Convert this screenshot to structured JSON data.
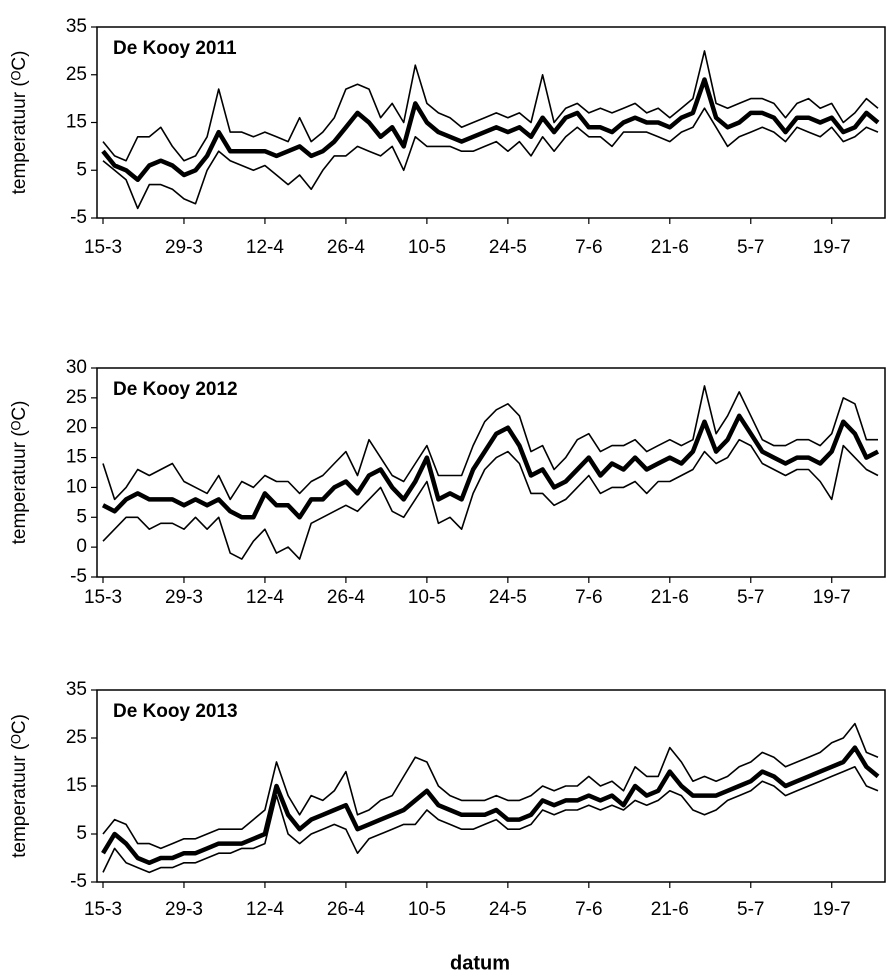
{
  "chart_data": [
    {
      "type": "line",
      "title": "De Kooy 2011",
      "y_label": "temperatuur (ᴼC)",
      "categories": [
        "15-3",
        null,
        null,
        null,
        null,
        null,
        null,
        "29-3",
        null,
        null,
        null,
        null,
        null,
        null,
        "12-4",
        null,
        null,
        null,
        null,
        null,
        null,
        "26-4",
        null,
        null,
        null,
        null,
        null,
        null,
        "10-5",
        null,
        null,
        null,
        null,
        null,
        null,
        "24-5",
        null,
        null,
        null,
        null,
        null,
        null,
        "7-6",
        null,
        null,
        null,
        null,
        null,
        null,
        "21-6",
        null,
        null,
        null,
        null,
        null,
        null,
        "5-7",
        null,
        null,
        null,
        null,
        null,
        null,
        "19-7",
        null,
        null,
        null,
        null
      ],
      "ylim": [
        -5,
        35
      ],
      "yticks": [
        -5,
        5,
        15,
        25,
        35
      ],
      "series": [
        {
          "color": "#000000",
          "linewidth": 1.6,
          "values": [
            11,
            8,
            7,
            12,
            12,
            14,
            10,
            7,
            8,
            12,
            22,
            13,
            13,
            12,
            13,
            12,
            11,
            16,
            11,
            13,
            16,
            22,
            23,
            22,
            16,
            19,
            15,
            27,
            19,
            17,
            16,
            14,
            15,
            16,
            17,
            16,
            17,
            15,
            25,
            15,
            18,
            19,
            17,
            18,
            17,
            18,
            19,
            17,
            18,
            16,
            18,
            20,
            30,
            19,
            18,
            19,
            20,
            20,
            19,
            16,
            19,
            20,
            18,
            19,
            15,
            17,
            20,
            18
          ]
        },
        {
          "color": "#000000",
          "linewidth": 4.5,
          "values": [
            9,
            6,
            5,
            3,
            6,
            7,
            6,
            4,
            5,
            8,
            13,
            9,
            9,
            9,
            9,
            8,
            9,
            10,
            8,
            9,
            11,
            14,
            17,
            15,
            12,
            14,
            10,
            19,
            15,
            13,
            12,
            11,
            12,
            13,
            14,
            13,
            14,
            12,
            16,
            13,
            16,
            17,
            14,
            14,
            13,
            15,
            16,
            15,
            15,
            14,
            16,
            17,
            24,
            16,
            14,
            15,
            17,
            17,
            16,
            13,
            16,
            16,
            15,
            16,
            13,
            14,
            17,
            15
          ]
        },
        {
          "color": "#000000",
          "linewidth": 1.6,
          "values": [
            7,
            5,
            3,
            -3,
            2,
            2,
            1,
            -1,
            -2,
            5,
            9,
            7,
            6,
            5,
            6,
            4,
            2,
            4,
            1,
            5,
            8,
            8,
            10,
            9,
            8,
            10,
            5,
            12,
            10,
            10,
            10,
            9,
            9,
            10,
            11,
            9,
            11,
            8,
            12,
            9,
            12,
            14,
            12,
            12,
            10,
            13,
            13,
            13,
            12,
            11,
            13,
            14,
            18,
            14,
            10,
            12,
            13,
            14,
            13,
            11,
            14,
            13,
            12,
            14,
            11,
            12,
            14,
            13
          ]
        }
      ]
    },
    {
      "type": "line",
      "title": "De Kooy 2012",
      "y_label": "temperatuur (ᴼC)",
      "categories": [
        "15-3",
        null,
        null,
        null,
        null,
        null,
        null,
        "29-3",
        null,
        null,
        null,
        null,
        null,
        null,
        "12-4",
        null,
        null,
        null,
        null,
        null,
        null,
        "26-4",
        null,
        null,
        null,
        null,
        null,
        null,
        "10-5",
        null,
        null,
        null,
        null,
        null,
        null,
        "24-5",
        null,
        null,
        null,
        null,
        null,
        null,
        "7-6",
        null,
        null,
        null,
        null,
        null,
        null,
        "21-6",
        null,
        null,
        null,
        null,
        null,
        null,
        "5-7",
        null,
        null,
        null,
        null,
        null,
        null,
        "19-7",
        null,
        null,
        null,
        null
      ],
      "ylim": [
        -5,
        30
      ],
      "yticks": [
        -5,
        0,
        5,
        10,
        15,
        20,
        25,
        30
      ],
      "series": [
        {
          "color": "#000000",
          "linewidth": 1.6,
          "values": [
            14,
            8,
            10,
            13,
            12,
            13,
            14,
            11,
            10,
            9,
            12,
            8,
            11,
            10,
            12,
            11,
            11,
            9,
            11,
            12,
            14,
            16,
            12,
            18,
            15,
            12,
            11,
            14,
            17,
            12,
            12,
            12,
            17,
            21,
            23,
            24,
            22,
            16,
            17,
            13,
            15,
            18,
            19,
            16,
            17,
            17,
            18,
            16,
            17,
            18,
            17,
            18,
            27,
            19,
            22,
            26,
            22,
            18,
            17,
            17,
            18,
            18,
            17,
            19,
            25,
            24,
            18,
            18
          ]
        },
        {
          "color": "#000000",
          "linewidth": 4.5,
          "values": [
            7,
            6,
            8,
            9,
            8,
            8,
            8,
            7,
            8,
            7,
            8,
            6,
            5,
            5,
            9,
            7,
            7,
            5,
            8,
            8,
            10,
            11,
            9,
            12,
            13,
            10,
            8,
            11,
            15,
            8,
            9,
            8,
            13,
            16,
            19,
            20,
            17,
            12,
            13,
            10,
            11,
            13,
            15,
            12,
            14,
            13,
            15,
            13,
            14,
            15,
            14,
            16,
            21,
            16,
            18,
            22,
            19,
            16,
            15,
            14,
            15,
            15,
            14,
            16,
            21,
            19,
            15,
            16
          ]
        },
        {
          "color": "#000000",
          "linewidth": 1.6,
          "values": [
            1,
            3,
            5,
            5,
            3,
            4,
            4,
            3,
            5,
            3,
            5,
            -1,
            -2,
            1,
            3,
            -1,
            0,
            -2,
            4,
            5,
            6,
            7,
            6,
            8,
            10,
            6,
            5,
            8,
            11,
            4,
            5,
            3,
            9,
            13,
            15,
            16,
            14,
            9,
            9,
            7,
            8,
            10,
            12,
            9,
            10,
            10,
            11,
            9,
            11,
            11,
            12,
            13,
            16,
            14,
            15,
            18,
            17,
            14,
            13,
            12,
            13,
            13,
            11,
            8,
            17,
            15,
            13,
            12
          ]
        }
      ]
    },
    {
      "type": "line",
      "title": "De Kooy 2013",
      "y_label": "temperatuur (ᴼC)",
      "x_label": "datum",
      "categories": [
        "15-3",
        null,
        null,
        null,
        null,
        null,
        null,
        "29-3",
        null,
        null,
        null,
        null,
        null,
        null,
        "12-4",
        null,
        null,
        null,
        null,
        null,
        null,
        "26-4",
        null,
        null,
        null,
        null,
        null,
        null,
        "10-5",
        null,
        null,
        null,
        null,
        null,
        null,
        "24-5",
        null,
        null,
        null,
        null,
        null,
        null,
        "7-6",
        null,
        null,
        null,
        null,
        null,
        null,
        "21-6",
        null,
        null,
        null,
        null,
        null,
        null,
        "5-7",
        null,
        null,
        null,
        null,
        null,
        null,
        "19-7",
        null,
        null,
        null,
        null
      ],
      "ylim": [
        -5,
        35
      ],
      "yticks": [
        -5,
        5,
        15,
        25,
        35
      ],
      "series": [
        {
          "color": "#000000",
          "linewidth": 1.6,
          "values": [
            5,
            8,
            7,
            3,
            3,
            2,
            3,
            4,
            4,
            5,
            6,
            6,
            6,
            8,
            10,
            20,
            13,
            9,
            13,
            12,
            14,
            18,
            9,
            10,
            12,
            13,
            17,
            21,
            20,
            15,
            13,
            12,
            12,
            12,
            13,
            12,
            12,
            13,
            15,
            14,
            15,
            15,
            17,
            15,
            16,
            14,
            19,
            17,
            17,
            23,
            20,
            16,
            17,
            16,
            17,
            19,
            20,
            22,
            21,
            19,
            20,
            21,
            22,
            24,
            25,
            28,
            22,
            21
          ]
        },
        {
          "color": "#000000",
          "linewidth": 4.5,
          "values": [
            1,
            5,
            3,
            0,
            -1,
            0,
            0,
            1,
            1,
            2,
            3,
            3,
            3,
            4,
            5,
            15,
            9,
            6,
            8,
            9,
            10,
            11,
            6,
            7,
            8,
            9,
            10,
            12,
            14,
            11,
            10,
            9,
            9,
            9,
            10,
            8,
            8,
            9,
            12,
            11,
            12,
            12,
            13,
            12,
            13,
            11,
            15,
            13,
            14,
            18,
            15,
            13,
            13,
            13,
            14,
            15,
            16,
            18,
            17,
            15,
            16,
            17,
            18,
            19,
            20,
            23,
            19,
            17
          ]
        },
        {
          "color": "#000000",
          "linewidth": 1.6,
          "values": [
            -3,
            2,
            -1,
            -2,
            -3,
            -2,
            -2,
            -1,
            -1,
            0,
            1,
            1,
            2,
            2,
            3,
            13,
            5,
            3,
            5,
            6,
            7,
            6,
            1,
            4,
            5,
            6,
            7,
            7,
            10,
            8,
            7,
            6,
            6,
            7,
            8,
            6,
            6,
            7,
            10,
            9,
            10,
            10,
            11,
            10,
            11,
            10,
            12,
            11,
            12,
            14,
            13,
            10,
            9,
            10,
            12,
            13,
            14,
            16,
            15,
            13,
            14,
            15,
            16,
            17,
            18,
            19,
            15,
            14
          ]
        }
      ]
    }
  ]
}
